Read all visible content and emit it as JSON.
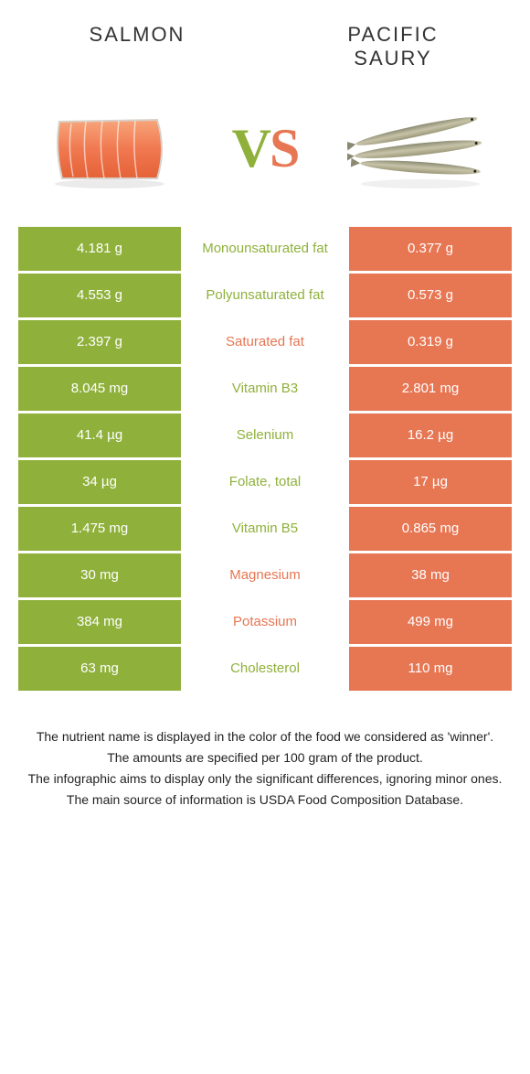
{
  "colors": {
    "left": "#8fb13b",
    "right": "#e77653",
    "vs_v": "#8fb13b",
    "vs_s": "#e77653"
  },
  "header": {
    "left": "SALMON",
    "right": "PACIFIC SAURY"
  },
  "vs": {
    "v": "V",
    "s": "S"
  },
  "rows": [
    {
      "left": "4.181 g",
      "label": "Monounsaturated fat",
      "right": "0.377 g",
      "winner": "left"
    },
    {
      "left": "4.553 g",
      "label": "Polyunsaturated fat",
      "right": "0.573 g",
      "winner": "left"
    },
    {
      "left": "2.397 g",
      "label": "Saturated fat",
      "right": "0.319 g",
      "winner": "right"
    },
    {
      "left": "8.045 mg",
      "label": "Vitamin B3",
      "right": "2.801 mg",
      "winner": "left"
    },
    {
      "left": "41.4 µg",
      "label": "Selenium",
      "right": "16.2 µg",
      "winner": "left"
    },
    {
      "left": "34 µg",
      "label": "Folate, total",
      "right": "17 µg",
      "winner": "left"
    },
    {
      "left": "1.475 mg",
      "label": "Vitamin B5",
      "right": "0.865 mg",
      "winner": "left"
    },
    {
      "left": "30 mg",
      "label": "Magnesium",
      "right": "38 mg",
      "winner": "right"
    },
    {
      "left": "384 mg",
      "label": "Potassium",
      "right": "499 mg",
      "winner": "right"
    },
    {
      "left": "63 mg",
      "label": "Cholesterol",
      "right": "110 mg",
      "winner": "left"
    }
  ],
  "footnotes": [
    "The nutrient name is displayed in the color of the food we considered as 'winner'.",
    "The amounts are specified per 100 gram of the product.",
    "The infographic aims to display only the significant differences, ignoring minor ones.",
    "The main source of information is USDA Food Composition Database."
  ]
}
